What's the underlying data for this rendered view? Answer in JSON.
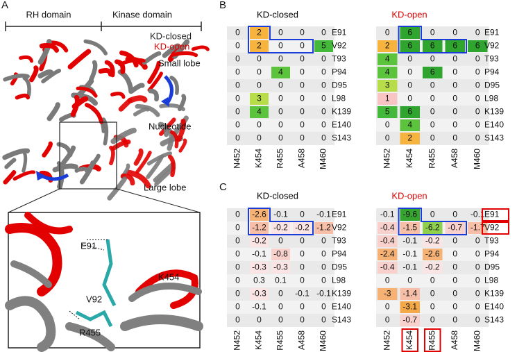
{
  "panel_a": {
    "label": "A",
    "rh_domain": "RH domain",
    "kinase_domain": "Kinase domain",
    "legend": [
      {
        "text": "KD-closed",
        "color": "#222222"
      },
      {
        "text": "KD-open",
        "color": "#e00000"
      }
    ],
    "small_lobe": "Small lobe",
    "nucleotide": "Nucleotide",
    "large_lobe": "Large lobe",
    "inset_labels": [
      "E91",
      "K454",
      "V92",
      "R455"
    ]
  },
  "panel_b": {
    "label": "B",
    "closed": {
      "title": "KD-closed",
      "title_color": "#000000",
      "rows": [
        "E91",
        "V92",
        "T93",
        "P94",
        "D95",
        "L98",
        "K139",
        "E140",
        "S143"
      ],
      "columns": [
        "N452",
        "K454",
        "R455",
        "A458",
        "M460"
      ],
      "values": [
        [
          0,
          2,
          0,
          0,
          0
        ],
        [
          0,
          2,
          0,
          0,
          5
        ],
        [
          0,
          0,
          0,
          0,
          0
        ],
        [
          0,
          0,
          4,
          0,
          0
        ],
        [
          0,
          0,
          0,
          0,
          0
        ],
        [
          0,
          3,
          0,
          0,
          0
        ],
        [
          0,
          4,
          0,
          0,
          0
        ],
        [
          0,
          0,
          0,
          0,
          0
        ],
        [
          0,
          0,
          0,
          0,
          0
        ]
      ]
    },
    "open": {
      "title": "KD-open",
      "title_color": "#e00000",
      "rows": [
        "E91",
        "V92",
        "T93",
        "P94",
        "D95",
        "L98",
        "K139",
        "E140",
        "S143"
      ],
      "columns": [
        "N452",
        "K454",
        "R455",
        "A458",
        "M460"
      ],
      "values": [
        [
          0,
          6,
          0,
          0,
          0
        ],
        [
          2,
          6,
          6,
          6,
          6
        ],
        [
          4,
          0,
          0,
          0,
          0
        ],
        [
          4,
          0,
          6,
          0,
          0
        ],
        [
          3,
          0,
          0,
          0,
          0
        ],
        [
          1,
          0,
          0,
          0,
          0
        ],
        [
          5,
          6,
          0,
          0,
          0
        ],
        [
          0,
          4,
          0,
          0,
          0
        ],
        [
          0,
          2,
          0,
          0,
          0
        ]
      ]
    }
  },
  "panel_c": {
    "label": "C",
    "closed": {
      "title": "KD-closed",
      "title_color": "#000000",
      "rows": [
        "E91",
        "V92",
        "T93",
        "P94",
        "D95",
        "L98",
        "K139",
        "E140",
        "S143"
      ],
      "columns": [
        "N452",
        "K454",
        "R455",
        "A458",
        "M460"
      ],
      "values": [
        [
          0,
          -2.6,
          -0.1,
          0,
          -0.1
        ],
        [
          0,
          -1.2,
          -0.2,
          -0.2,
          -1.2
        ],
        [
          0,
          -0.2,
          0,
          0,
          0
        ],
        [
          0,
          -0.1,
          -0.8,
          0,
          0
        ],
        [
          0,
          -0.3,
          -0.3,
          0,
          0
        ],
        [
          0,
          0.3,
          0.1,
          0,
          0
        ],
        [
          0,
          -0.3,
          0,
          -0.1,
          -0.1
        ],
        [
          0,
          -0.1,
          0,
          0,
          0
        ],
        [
          0,
          0,
          0,
          0,
          0
        ]
      ]
    },
    "open": {
      "title": "KD-open",
      "title_color": "#e00000",
      "rows": [
        "E91",
        "V92",
        "T93",
        "P94",
        "D95",
        "L98",
        "K139",
        "E140",
        "S143"
      ],
      "columns": [
        "N452",
        "K454",
        "R455",
        "A458",
        "M460"
      ],
      "values": [
        [
          -0.1,
          -9.6,
          0,
          0,
          -0.1
        ],
        [
          -0.4,
          -1.5,
          -6.2,
          -0.7,
          -1.7
        ],
        [
          -0.4,
          -0.1,
          -0.2,
          0,
          0
        ],
        [
          -2.4,
          -0.1,
          -2.6,
          0,
          0
        ],
        [
          -0.4,
          -0.1,
          -0.2,
          0,
          0
        ],
        [
          0,
          0,
          0,
          0,
          0
        ],
        [
          -3,
          -1.4,
          0,
          0,
          0
        ],
        [
          0,
          -3.1,
          0,
          0,
          0
        ],
        [
          0,
          -0.7,
          0,
          0,
          0
        ]
      ]
    }
  }
}
